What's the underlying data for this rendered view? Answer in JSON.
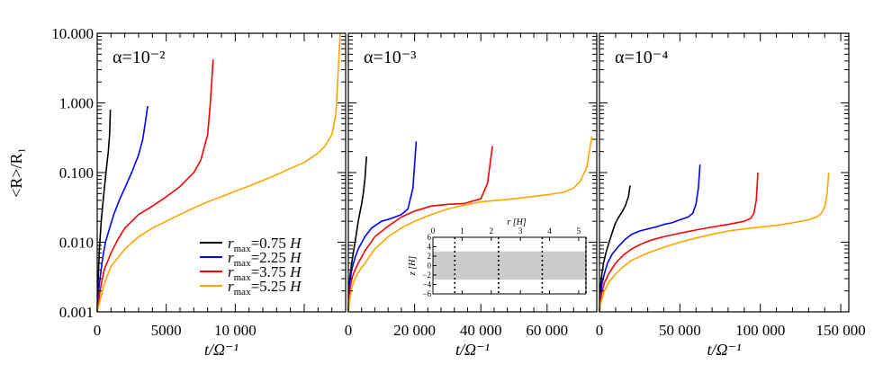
{
  "chart_data": [
    {
      "type": "line",
      "panel_label": "α=10⁻²",
      "xlabel": "t/Ω⁻¹",
      "ylabel": "<R>/R₁",
      "yscale": "log",
      "ylim": [
        0.001,
        10.0
      ],
      "xlim": [
        0,
        18000
      ],
      "xticks": [
        0,
        5000,
        10000
      ],
      "xtick_labels": [
        "0",
        "5000",
        "10 000"
      ],
      "yticks": [
        0.001,
        0.01,
        0.1,
        1.0,
        10.0
      ],
      "ytick_labels": [
        "0.001",
        "0.010",
        "0.100",
        "1.000",
        "10.000"
      ],
      "legend": {
        "position": "bottom-right",
        "entries": [
          {
            "text": "r",
            "sub": "max",
            "value": "=0.75 ",
            "unit": "H"
          },
          {
            "text": "r",
            "sub": "max",
            "value": "=2.25 ",
            "unit": "H"
          },
          {
            "text": "r",
            "sub": "max",
            "value": "=3.75 ",
            "unit": "H"
          },
          {
            "text": "r",
            "sub": "max",
            "value": "=5.25 ",
            "unit": "H"
          }
        ]
      },
      "series": [
        {
          "color": "#000000",
          "x": [
            0,
            50,
            100,
            150,
            200,
            300,
            400,
            500,
            600,
            700,
            800,
            900,
            950
          ],
          "y": [
            0.001,
            0.0025,
            0.004,
            0.0075,
            0.011,
            0.021,
            0.034,
            0.055,
            0.085,
            0.13,
            0.2,
            0.35,
            0.8
          ]
        },
        {
          "color": "#0000ff",
          "x": [
            0,
            100,
            200,
            400,
            600,
            900,
            1200,
            1600,
            2000,
            2500,
            3000,
            3300,
            3500,
            3650
          ],
          "y": [
            0.001,
            0.002,
            0.003,
            0.006,
            0.01,
            0.016,
            0.025,
            0.04,
            0.06,
            0.1,
            0.18,
            0.3,
            0.55,
            0.9
          ]
        },
        {
          "color": "#ff0000",
          "x": [
            0,
            200,
            500,
            1000,
            1500,
            2000,
            3000,
            4000,
            5000,
            6000,
            7000,
            7500,
            8000,
            8200,
            8400
          ],
          "y": [
            0.001,
            0.002,
            0.004,
            0.007,
            0.011,
            0.016,
            0.025,
            0.033,
            0.045,
            0.063,
            0.1,
            0.15,
            0.35,
            1.0,
            4.2
          ]
        },
        {
          "color": "#ffa500",
          "x": [
            0,
            500,
            1000,
            2000,
            3000,
            4000,
            5000,
            6000,
            7000,
            8000,
            9000,
            10000,
            11000,
            12000,
            13000,
            14000,
            15000,
            16000,
            16500,
            17000,
            17300,
            17600
          ],
          "y": [
            0.001,
            0.0025,
            0.0045,
            0.008,
            0.012,
            0.016,
            0.02,
            0.025,
            0.031,
            0.038,
            0.045,
            0.054,
            0.064,
            0.077,
            0.093,
            0.115,
            0.14,
            0.19,
            0.24,
            0.35,
            0.7,
            10.0
          ]
        }
      ]
    },
    {
      "type": "line",
      "panel_label": "α=10⁻³",
      "xlabel": "t/Ω⁻¹",
      "yscale": "log",
      "ylim": [
        0.001,
        10.0
      ],
      "xlim": [
        0,
        75000
      ],
      "xticks": [
        0,
        20000,
        40000,
        60000
      ],
      "xtick_labels": [
        "0",
        "20 000",
        "40 000",
        "60 000"
      ],
      "inset": {
        "xlabel": "r [H]",
        "ylabel": "z [H]",
        "xticks": [
          0,
          1,
          2,
          3,
          4,
          5
        ],
        "xtick_labels": [
          "0",
          "1",
          "2",
          "3",
          "4",
          "5"
        ],
        "yticks": [
          6,
          4,
          2,
          0,
          -2,
          -4,
          -6
        ],
        "ytick_labels": [
          "6",
          "4",
          "2",
          "0",
          "−2",
          "−4",
          "−6"
        ],
        "xlim": [
          0,
          5.25
        ],
        "ylim": [
          -6,
          6
        ],
        "band": [
          -3,
          3
        ],
        "band_color": "#cccccc",
        "dotted_lines": [
          0.75,
          2.25,
          3.75,
          5.25
        ]
      },
      "series": [
        {
          "color": "#000000",
          "x": [
            0,
            100,
            300,
            600,
            1000,
            1500,
            2000,
            2500,
            3000,
            3500,
            4000,
            4500,
            5000,
            5500
          ],
          "y": [
            0.001,
            0.0016,
            0.0025,
            0.0035,
            0.005,
            0.007,
            0.01,
            0.014,
            0.02,
            0.027,
            0.035,
            0.05,
            0.08,
            0.17
          ]
        },
        {
          "color": "#0000ff",
          "x": [
            0,
            200,
            500,
            1000,
            2000,
            3000,
            5000,
            7000,
            10000,
            13000,
            16000,
            18000,
            19500,
            20500
          ],
          "y": [
            0.001,
            0.0018,
            0.0027,
            0.004,
            0.006,
            0.008,
            0.012,
            0.016,
            0.02,
            0.022,
            0.025,
            0.03,
            0.06,
            0.28
          ]
        },
        {
          "color": "#ff0000",
          "x": [
            0,
            300,
            1000,
            2000,
            3000,
            5000,
            8000,
            12000,
            16000,
            20000,
            25000,
            30000,
            35000,
            40000,
            42000,
            43500
          ],
          "y": [
            0.001,
            0.0018,
            0.003,
            0.004,
            0.005,
            0.0075,
            0.012,
            0.017,
            0.023,
            0.028,
            0.033,
            0.035,
            0.036,
            0.042,
            0.07,
            0.24
          ]
        },
        {
          "color": "#ffa500",
          "x": [
            0,
            500,
            1000,
            2000,
            3000,
            5000,
            8000,
            12000,
            16000,
            20000,
            25000,
            30000,
            35000,
            40000,
            45000,
            50000,
            55000,
            60000,
            65000,
            68000,
            70000,
            72000,
            73500
          ],
          "y": [
            0.001,
            0.0016,
            0.0022,
            0.003,
            0.0037,
            0.005,
            0.008,
            0.012,
            0.016,
            0.02,
            0.025,
            0.03,
            0.034,
            0.038,
            0.04,
            0.042,
            0.045,
            0.048,
            0.052,
            0.06,
            0.075,
            0.12,
            0.33
          ]
        }
      ]
    },
    {
      "type": "line",
      "panel_label": "α=10⁻⁴",
      "xlabel": "t/Ω⁻¹",
      "yscale": "log",
      "ylim": [
        0.001,
        10.0
      ],
      "xlim": [
        0,
        155000
      ],
      "xticks": [
        0,
        50000,
        100000,
        150000
      ],
      "xtick_labels": [
        "0",
        "50 000",
        "100 000",
        "150 000"
      ],
      "series": [
        {
          "color": "#000000",
          "x": [
            0,
            300,
            800,
            1500,
            2500,
            4000,
            6000,
            8000,
            10000,
            12000,
            14000,
            16000,
            18000,
            19000
          ],
          "y": [
            0.001,
            0.0016,
            0.0025,
            0.0035,
            0.005,
            0.007,
            0.01,
            0.014,
            0.019,
            0.023,
            0.027,
            0.033,
            0.045,
            0.065
          ]
        },
        {
          "color": "#0000ff",
          "x": [
            0,
            500,
            1500,
            3000,
            5000,
            8000,
            12000,
            16000,
            20000,
            25000,
            30000,
            35000,
            40000,
            45000,
            50000,
            55000,
            58000,
            60000,
            61500,
            62500
          ],
          "y": [
            0.001,
            0.0016,
            0.0025,
            0.0035,
            0.005,
            0.0068,
            0.0088,
            0.011,
            0.013,
            0.0145,
            0.0155,
            0.0165,
            0.018,
            0.019,
            0.021,
            0.023,
            0.026,
            0.035,
            0.06,
            0.13
          ]
        },
        {
          "color": "#ff0000",
          "x": [
            0,
            1000,
            3000,
            6000,
            10000,
            15000,
            20000,
            25000,
            30000,
            35000,
            40000,
            50000,
            60000,
            70000,
            80000,
            90000,
            94000,
            96000,
            97500,
            98500
          ],
          "y": [
            0.001,
            0.0017,
            0.0026,
            0.0036,
            0.005,
            0.0066,
            0.008,
            0.0092,
            0.0103,
            0.0112,
            0.012,
            0.0135,
            0.015,
            0.0165,
            0.018,
            0.02,
            0.022,
            0.026,
            0.04,
            0.1
          ]
        },
        {
          "color": "#ffa500",
          "x": [
            0,
            1000,
            3000,
            6000,
            10000,
            15000,
            20000,
            30000,
            40000,
            50000,
            60000,
            70000,
            80000,
            90000,
            100000,
            110000,
            120000,
            130000,
            135000,
            138000,
            140000,
            141500,
            142500
          ],
          "y": [
            0.001,
            0.0014,
            0.002,
            0.0027,
            0.0035,
            0.0045,
            0.0055,
            0.007,
            0.0085,
            0.01,
            0.0115,
            0.013,
            0.0145,
            0.0155,
            0.0165,
            0.0175,
            0.019,
            0.021,
            0.023,
            0.026,
            0.032,
            0.05,
            0.1
          ]
        }
      ]
    }
  ]
}
